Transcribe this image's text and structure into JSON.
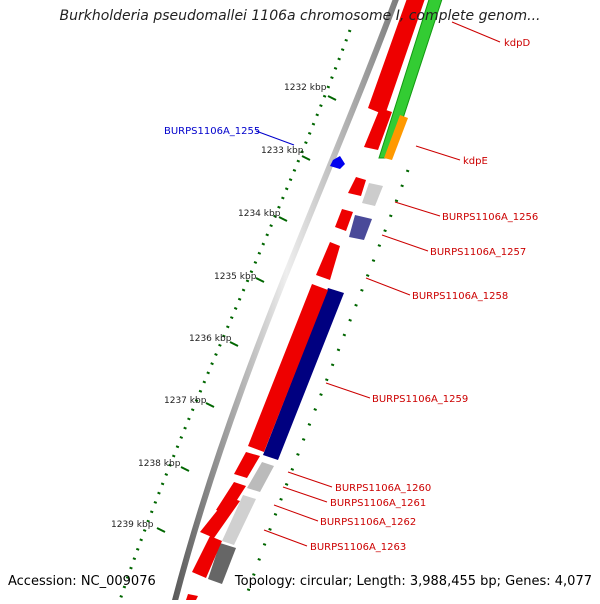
{
  "title": "Burkholderia pseudomallei 1106a chromosome I, complete genom...",
  "footer": {
    "accession": "Accession: NC_009076",
    "summary": "Topology: circular; Length: 3,988,455 bp; Genes: 4,077"
  },
  "ticks": [
    "1232 kbp",
    "1233 kbp",
    "1234 kbp",
    "1235 kbp",
    "1236 kbp",
    "1237 kbp",
    "1238 kbp",
    "1239 kbp"
  ],
  "gene_labels": [
    {
      "text": "kdpD",
      "color": "#cc0000"
    },
    {
      "text": "BURPS1106A_1255",
      "color": "#0000cc"
    },
    {
      "text": "kdpE",
      "color": "#cc0000"
    },
    {
      "text": "BURPS1106A_1256",
      "color": "#cc0000"
    },
    {
      "text": "BURPS1106A_1257",
      "color": "#cc0000"
    },
    {
      "text": "BURPS1106A_1258",
      "color": "#cc0000"
    },
    {
      "text": "BURPS1106A_1259",
      "color": "#cc0000"
    },
    {
      "text": "BURPS1106A_1260",
      "color": "#cc0000"
    },
    {
      "text": "BURPS1106A_1261",
      "color": "#cc0000"
    },
    {
      "text": "BURPS1106A_1262",
      "color": "#cc0000"
    },
    {
      "text": "BURPS1106A_1263",
      "color": "#cc0000"
    }
  ],
  "colors": {
    "cds": "#ee0000",
    "reverse_cds": "#0000ee",
    "cog_green": "#33cc33",
    "cog_orange": "#ff9900",
    "cog_navy": "#000080",
    "cog_slate": "#4a4a99",
    "cog_gray": "#cccccc",
    "cog_dark": "#666666",
    "backbone": "#808080",
    "ticks": "#006600",
    "label_red": "#cc0000",
    "label_blue": "#0000cc"
  }
}
